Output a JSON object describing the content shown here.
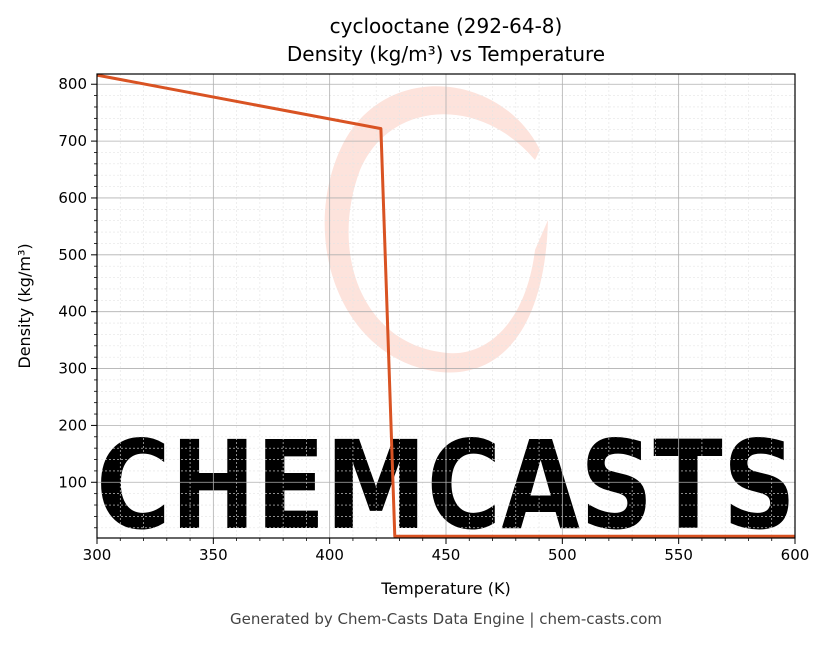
{
  "chart_data": {
    "type": "line",
    "title_line1": "cyclooctane (292-64-8)",
    "title_line2": "Density (kg/m³) vs Temperature",
    "xlabel": "Temperature (K)",
    "ylabel": "Density (kg/m³)",
    "xlim": [
      300,
      600
    ],
    "ylim": [
      2,
      818
    ],
    "xticks": [
      300,
      350,
      400,
      450,
      500,
      550,
      600
    ],
    "yticks": [
      100,
      200,
      300,
      400,
      500,
      600,
      700,
      800
    ],
    "grid": true,
    "series": [
      {
        "color": "#d95323",
        "x": [
          300,
          422,
          428,
          429,
          600
        ],
        "y": [
          816,
          722,
          5,
          5,
          5
        ]
      }
    ]
  },
  "watermark": {
    "text": "CHEMCASTS",
    "color": "#fde3dc"
  },
  "footer": "Generated by Chem-Casts Data Engine | chem-casts.com"
}
